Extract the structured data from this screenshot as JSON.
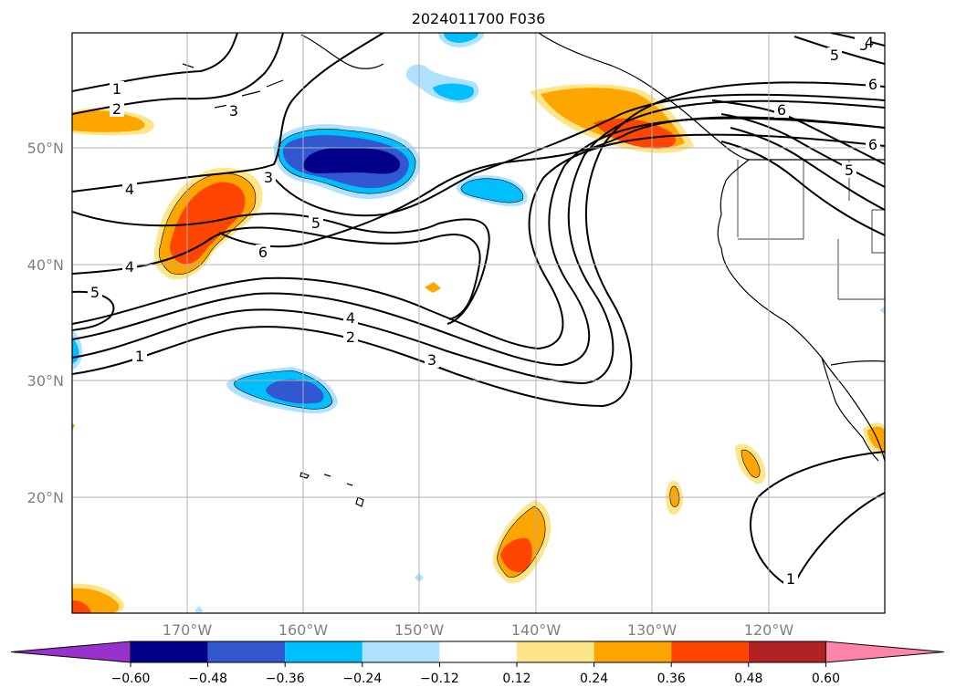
{
  "title": "2024011700 F036",
  "lat_labels": [
    "50°N",
    "40°N",
    "30°N",
    "20°N"
  ],
  "lon_labels": [
    "170°W",
    "160°W",
    "150°W",
    "140°W",
    "130°W",
    "120°W"
  ],
  "contour_labels": [
    "1",
    "2",
    "3",
    "4",
    "5",
    "6",
    "3",
    "4",
    "5",
    "6",
    "5",
    "1",
    "2",
    "3",
    "4",
    "5",
    "6",
    "6",
    "5",
    "4",
    "1"
  ],
  "colorbar": {
    "tick_labels": [
      "−0.60",
      "−0.48",
      "−0.36",
      "−0.24",
      "−0.12",
      "0.12",
      "0.24",
      "0.36",
      "0.48",
      "0.60"
    ],
    "colors": [
      "#9932cc",
      "#00008b",
      "#3158d0",
      "#00bfff",
      "#b0e2ff",
      "#ffffff",
      "#fde68a",
      "#ffa500",
      "#ff4500",
      "#b22222",
      "#ff85a8"
    ]
  }
}
